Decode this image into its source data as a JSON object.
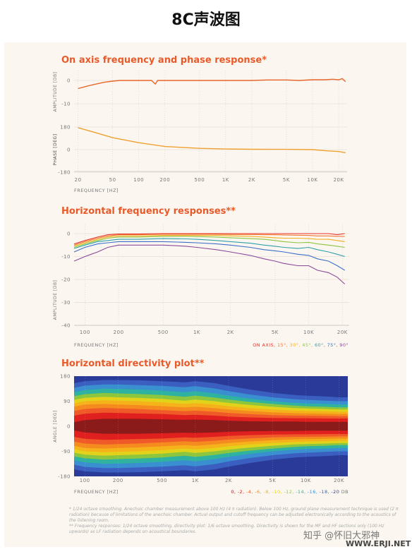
{
  "page_title": "8C声波图",
  "watermark": "知乎 @怀旧大邪神",
  "watermark_site": "WWW.ERJI.NET",
  "footnote_1": "* 1/24 octave smoothing. Anechoic chamber measurement above 100 Hz (4 π radiation). Below 100 Hz, ground plane measurement technique is used (2 π radiation) because of limitations of the anechoic chamber. Actual output and cutoff frequency can be adjusted electronically according to the acoustics of the listening room.",
  "footnote_2": "** Frequency responses: 1/24 octave smoothing, directivity plot: 1/6 octave smoothing. Directivity is shown for the MF and HF sections only (100 Hz upwards) as LF radiation depends on acoustical boundaries.",
  "chart_data": [
    {
      "type": "line",
      "title": "On axis frequency and phase response*",
      "xlabel": "FREQUENCY [HZ]",
      "x_scale": "log",
      "x_ticks": [
        "20",
        "50",
        "100",
        "200",
        "500",
        "1K",
        "2K",
        "5K",
        "10K",
        "20K"
      ],
      "x_tick_values": [
        20,
        50,
        100,
        200,
        500,
        1000,
        2000,
        5000,
        10000,
        20000
      ],
      "panels": [
        {
          "ylabel": "AMPLITUDE [DB]",
          "y_ticks": [
            "0",
            "-10"
          ],
          "ylim": [
            -12,
            3
          ],
          "series": [
            {
              "color": "#e8662a",
              "x": [
                20,
                25,
                30,
                40,
                50,
                60,
                80,
                100,
                140,
                155,
                165,
                200,
                300,
                500,
                1000,
                2000,
                3000,
                5000,
                7000,
                10000,
                14000,
                17000,
                20000,
                22000,
                24000
              ],
              "y": [
                -3.5,
                -2.5,
                -1.8,
                -0.8,
                -0.3,
                0,
                0,
                0,
                0,
                -1.5,
                0,
                0,
                0,
                0,
                0,
                0,
                0.2,
                0.2,
                0,
                0.3,
                0.3,
                0.5,
                0.3,
                0.8,
                -0.5
              ]
            }
          ]
        },
        {
          "ylabel": "PHASE [DEG]",
          "y_ticks": [
            "180",
            "0",
            "-180"
          ],
          "ylim": [
            -180,
            180
          ],
          "series": [
            {
              "color": "#f0a030",
              "x": [
                20,
                30,
                50,
                100,
                200,
                500,
                1000,
                2000,
                5000,
                10000,
                15000,
                20000,
                24000
              ],
              "y": [
                175,
                140,
                95,
                55,
                25,
                10,
                5,
                3,
                2,
                0,
                -10,
                -15,
                -25
              ]
            }
          ]
        }
      ]
    },
    {
      "type": "line",
      "title": "Horizontal frequency responses**",
      "xlabel": "FREQUENCY [HZ]",
      "ylabel": "AMPLITUDE [DB]",
      "x_scale": "log",
      "x_ticks": [
        "100",
        "200",
        "500",
        "1K",
        "2K",
        "5K",
        "10K",
        "20K"
      ],
      "x_tick_values": [
        100,
        200,
        500,
        1000,
        2000,
        5000,
        10000,
        20000
      ],
      "y_ticks": [
        "0",
        "-10",
        "-20",
        "-30",
        "-40"
      ],
      "ylim": [
        -40,
        2
      ],
      "legend": {
        "placement": "bottom-right",
        "entries": [
          "ON AXIS,",
          "15°,",
          "30°,",
          "45°,",
          "60°,",
          "75°,",
          "90°"
        ]
      },
      "x": [
        80,
        100,
        130,
        160,
        200,
        300,
        500,
        800,
        1000,
        1500,
        2000,
        3000,
        4000,
        5000,
        6000,
        8000,
        10000,
        12000,
        15000,
        18000,
        21000
      ],
      "series": [
        {
          "name": "ON AXIS",
          "color": "#e8352a",
          "values": [
            -4.5,
            -3,
            -1.5,
            -0.5,
            -0.2,
            -0.2,
            0,
            0,
            0,
            0,
            0,
            0,
            0,
            0,
            0,
            0,
            0,
            0,
            0,
            -0.5,
            0
          ]
        },
        {
          "name": "15°",
          "color": "#f07830",
          "values": [
            -5,
            -3.5,
            -2,
            -1,
            -0.5,
            -0.5,
            -0.3,
            -0.3,
            -0.3,
            -0.3,
            -0.4,
            -0.4,
            -0.5,
            -0.5,
            -0.6,
            -0.7,
            -0.8,
            -1,
            -1,
            -1.2,
            -1.2
          ]
        },
        {
          "name": "30°",
          "color": "#f2b020",
          "values": [
            -5.5,
            -4,
            -2.5,
            -1.5,
            -1,
            -1,
            -0.8,
            -0.8,
            -0.8,
            -0.8,
            -1,
            -1.2,
            -1.5,
            -1.8,
            -2,
            -2,
            -2.2,
            -2.5,
            -2.5,
            -3,
            -3.5
          ]
        },
        {
          "name": "45°",
          "color": "#8cc63f",
          "values": [
            -6,
            -4.5,
            -3,
            -2,
            -1.5,
            -1.5,
            -1.2,
            -1.2,
            -1.3,
            -1.5,
            -1.8,
            -2.2,
            -2.5,
            -3,
            -3.5,
            -4,
            -3.8,
            -4.5,
            -5,
            -5.5,
            -6
          ]
        },
        {
          "name": "60°",
          "color": "#2fa0a8",
          "values": [
            -6.5,
            -5,
            -3.5,
            -3,
            -2.5,
            -2.5,
            -2.2,
            -2.3,
            -2.5,
            -3,
            -3.5,
            -4.2,
            -5,
            -5.5,
            -6,
            -6.5,
            -6,
            -7,
            -8,
            -9,
            -10
          ]
        },
        {
          "name": "75°",
          "color": "#3b6ec8",
          "values": [
            -8,
            -6,
            -4.5,
            -4,
            -3.5,
            -3.5,
            -3.5,
            -3.8,
            -4,
            -4.5,
            -5,
            -6,
            -7,
            -7.5,
            -8,
            -9,
            -9.5,
            -11,
            -12,
            -14,
            -16
          ]
        },
        {
          "name": "90°",
          "color": "#8a4a9a",
          "values": [
            -12,
            -10,
            -8,
            -6,
            -5,
            -5,
            -5,
            -5.5,
            -6,
            -7,
            -8,
            -9.5,
            -11,
            -12,
            -13,
            -14,
            -14,
            -16,
            -17,
            -19,
            -22
          ]
        }
      ]
    },
    {
      "type": "heatmap",
      "title": "Horizontal directivity plot**",
      "xlabel": "FREQUENCY [HZ]",
      "ylabel": "ANGLE [DEG]",
      "x_scale": "log",
      "x_ticks": [
        "100",
        "200",
        "500",
        "1K",
        "2K",
        "5K",
        "10K",
        "20K"
      ],
      "x_tick_values": [
        100,
        200,
        500,
        1000,
        2000,
        5000,
        10000,
        20000
      ],
      "y_ticks": [
        "180",
        "90",
        "0",
        "-90",
        "-180"
      ],
      "ylim": [
        -180,
        180
      ],
      "xlim": [
        80,
        24000
      ],
      "legend": {
        "placement": "bottom-right",
        "unit": "DB",
        "levels": [
          "0,",
          "-2,",
          "-4,",
          "-6,",
          "-8,",
          "-10,",
          "-12,",
          "-14,",
          "-16,",
          "-18,",
          "-20"
        ]
      },
      "level_colors": [
        "#8b1a1a",
        "#e0201e",
        "#f05a28",
        "#f58a1f",
        "#f5b21a",
        "#e3d21a",
        "#8cc63f",
        "#2fb2a0",
        "#3a8fd0",
        "#3a5fc0",
        "#2a3a98"
      ],
      "contour_freqs": [
        80,
        100,
        150,
        200,
        300,
        500,
        800,
        1000,
        1500,
        2000,
        3000,
        5000,
        8000,
        10000,
        15000,
        20000,
        24000
      ],
      "contour_angles": [
        [
          15,
          22,
          27,
          27,
          27,
          25,
          23,
          24,
          22,
          20,
          18,
          17,
          17,
          16,
          16,
          16,
          16
        ],
        [
          38,
          45,
          49,
          48,
          46,
          44,
          40,
          41,
          38,
          35,
          32,
          30,
          29,
          29,
          28,
          28,
          28
        ],
        [
          55,
          62,
          66,
          64,
          62,
          58,
          54,
          56,
          52,
          48,
          44,
          40,
          38,
          38,
          37,
          36,
          36
        ],
        [
          70,
          78,
          80,
          78,
          76,
          72,
          68,
          70,
          65,
          60,
          55,
          50,
          47,
          46,
          45,
          44,
          44
        ],
        [
          82,
          90,
          93,
          92,
          90,
          86,
          80,
          83,
          78,
          72,
          66,
          60,
          56,
          55,
          54,
          52,
          52
        ],
        [
          95,
          102,
          106,
          104,
          102,
          98,
          92,
          96,
          90,
          84,
          77,
          70,
          65,
          64,
          62,
          60,
          60
        ],
        [
          108,
          115,
          120,
          118,
          116,
          112,
          106,
          110,
          103,
          96,
          88,
          80,
          74,
          72,
          70,
          68,
          68
        ],
        [
          122,
          130,
          135,
          134,
          132,
          128,
          122,
          126,
          118,
          110,
          100,
          90,
          84,
          82,
          80,
          78,
          78
        ],
        [
          138,
          146,
          150,
          150,
          148,
          145,
          140,
          144,
          136,
          126,
          115,
          104,
          97,
          95,
          92,
          90,
          90
        ],
        [
          155,
          162,
          166,
          166,
          165,
          162,
          158,
          162,
          155,
          145,
          133,
          120,
          112,
          110,
          107,
          104,
          104
        ]
      ]
    }
  ]
}
